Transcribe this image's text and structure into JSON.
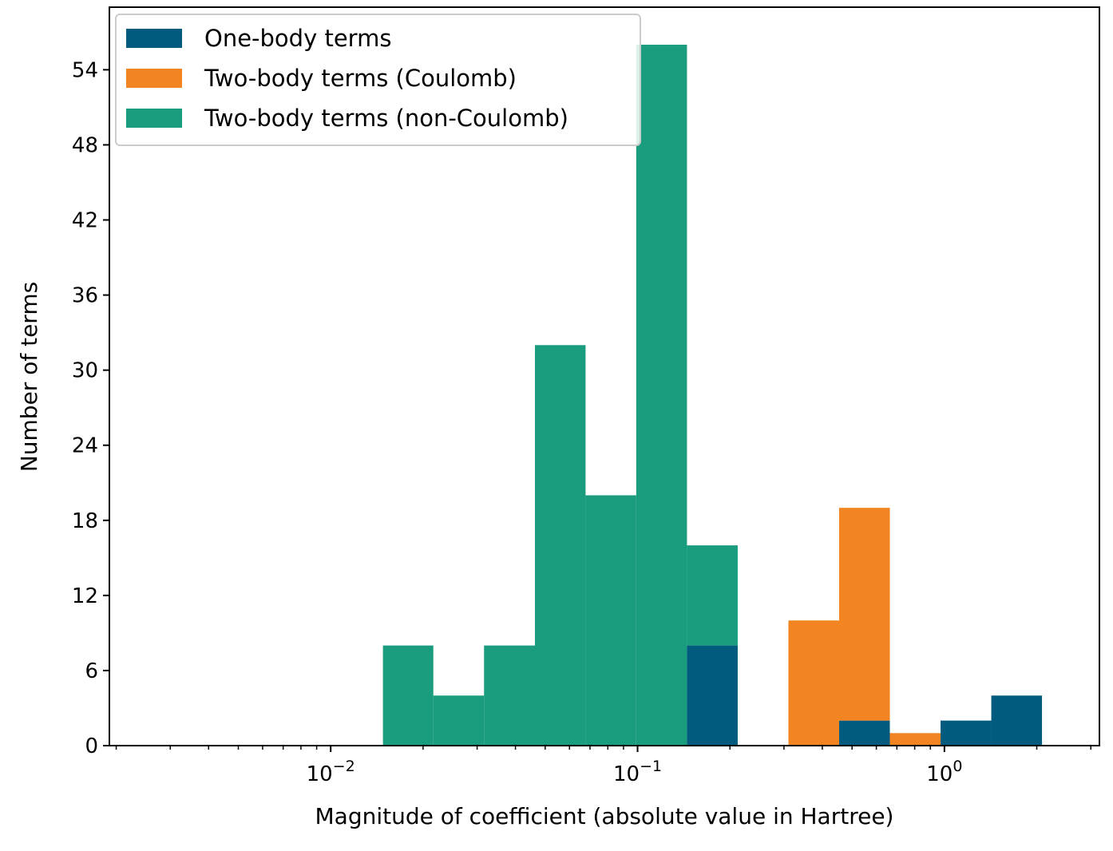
{
  "chart_data": {
    "type": "bar",
    "subtype": "stacked-histogram",
    "xscale": "log",
    "xlabel": "Magnitude of coefficient (absolute value in Hartree)",
    "ylabel": "Number of terms",
    "xlim": [
      0.0019,
      3.2
    ],
    "ylim": [
      0,
      59
    ],
    "yticks": [
      0,
      6,
      12,
      18,
      24,
      30,
      36,
      42,
      48,
      54
    ],
    "xticks": [
      {
        "value": 0.01,
        "base": "10",
        "exp": "−2"
      },
      {
        "value": 0.1,
        "base": "10",
        "exp": "−1"
      },
      {
        "value": 1,
        "base": "10",
        "exp": "0"
      }
    ],
    "bin_edges": [
      0.0148,
      0.0216,
      0.0316,
      0.0463,
      0.0677,
      0.099,
      0.1449,
      0.212,
      0.3102,
      0.4538,
      0.664,
      0.9715,
      1.4213,
      2.0795
    ],
    "series": [
      {
        "name": "One-body terms",
        "color": "#005b7e",
        "values": [
          0,
          0,
          0,
          0,
          0,
          0,
          8,
          0,
          0,
          2,
          0,
          2,
          4
        ]
      },
      {
        "name": "Two-body terms (Coulomb)",
        "color": "#f28422",
        "values": [
          0,
          0,
          0,
          0,
          0,
          0,
          0,
          0,
          10,
          17,
          1,
          0,
          0
        ]
      },
      {
        "name": "Two-body terms (non-Coulomb)",
        "color": "#1a9c7e",
        "values": [
          8,
          4,
          8,
          32,
          20,
          56,
          8,
          0,
          0,
          0,
          0,
          0,
          0
        ]
      }
    ],
    "legend": {
      "placement": "top-left"
    }
  }
}
